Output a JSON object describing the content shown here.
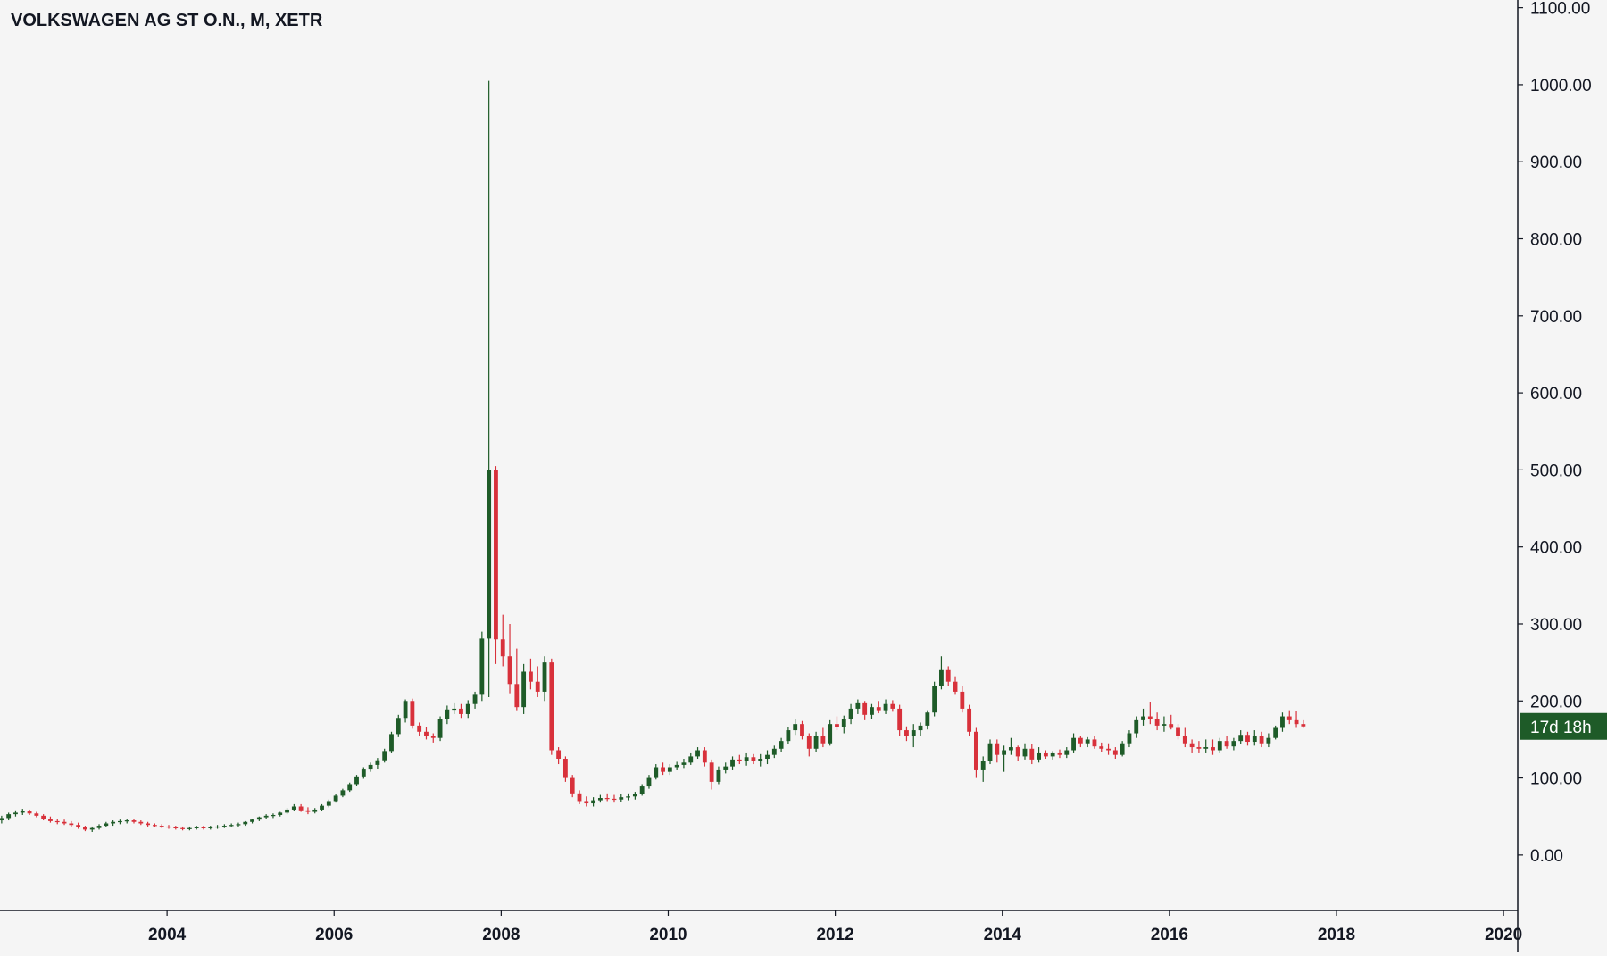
{
  "title": "VOLKSWAGEN AG ST O.N., M, XETR",
  "colors": {
    "background": "#f5f5f5",
    "up": "#1e5b28",
    "down": "#d8313b",
    "axis_line": "#131722",
    "text": "#131722",
    "badge_bg": "#1e5b28",
    "badge_text": "#ffffff"
  },
  "price_badge": "17d 18h",
  "chart_data": {
    "type": "candlestick",
    "title": "VOLKSWAGEN AG ST O.N., M, XETR",
    "interval": "monthly",
    "y_axis_position": "right",
    "ylim": [
      -72,
      1110
    ],
    "xlim": [
      2002.0,
      2020.17
    ],
    "grid": false,
    "y_ticks": [
      {
        "value": 1100,
        "label": "1100.00"
      },
      {
        "value": 1000,
        "label": "1000.00"
      },
      {
        "value": 900,
        "label": "900.00"
      },
      {
        "value": 800,
        "label": "800.00"
      },
      {
        "value": 700,
        "label": "700.00"
      },
      {
        "value": 600,
        "label": "600.00"
      },
      {
        "value": 500,
        "label": "500.00"
      },
      {
        "value": 400,
        "label": "400.00"
      },
      {
        "value": 300,
        "label": "300.00"
      },
      {
        "value": 200,
        "label": "200.00"
      },
      {
        "value": 100,
        "label": "100.00"
      },
      {
        "value": 0,
        "label": "0.00"
      }
    ],
    "x_ticks": [
      {
        "value": 2004,
        "label": "2004"
      },
      {
        "value": 2006,
        "label": "2006"
      },
      {
        "value": 2008,
        "label": "2008"
      },
      {
        "value": 2010,
        "label": "2010"
      },
      {
        "value": 2012,
        "label": "2012"
      },
      {
        "value": 2014,
        "label": "2014"
      },
      {
        "value": 2016,
        "label": "2016"
      },
      {
        "value": 2018,
        "label": "2018"
      },
      {
        "value": 2020,
        "label": "2020"
      }
    ],
    "candles_ohlc": [
      [
        45,
        51,
        41,
        48
      ],
      [
        48,
        55,
        45,
        53
      ],
      [
        53,
        58,
        50,
        55
      ],
      [
        55,
        60,
        52,
        57
      ],
      [
        57,
        59,
        52,
        54
      ],
      [
        54,
        56,
        49,
        51
      ],
      [
        51,
        53,
        45,
        47
      ],
      [
        47,
        50,
        42,
        44
      ],
      [
        44,
        47,
        40,
        43
      ],
      [
        43,
        46,
        39,
        41
      ],
      [
        41,
        44,
        37,
        39
      ],
      [
        39,
        42,
        34,
        36
      ],
      [
        36,
        38,
        31,
        33
      ],
      [
        33,
        37,
        30,
        35
      ],
      [
        35,
        40,
        33,
        38
      ],
      [
        38,
        43,
        36,
        41
      ],
      [
        41,
        45,
        38,
        43
      ],
      [
        43,
        46,
        40,
        44
      ],
      [
        44,
        47,
        41,
        45
      ],
      [
        45,
        47,
        41,
        43
      ],
      [
        43,
        45,
        39,
        41
      ],
      [
        41,
        43,
        37,
        39
      ],
      [
        39,
        41,
        36,
        38
      ],
      [
        38,
        40,
        35,
        37
      ],
      [
        37,
        39,
        34,
        36
      ],
      [
        36,
        38,
        33,
        35
      ],
      [
        35,
        37,
        32,
        34
      ],
      [
        34,
        37,
        32,
        35
      ],
      [
        35,
        38,
        33,
        36
      ],
      [
        36,
        38,
        33,
        35
      ],
      [
        35,
        38,
        33,
        36
      ],
      [
        36,
        39,
        34,
        37
      ],
      [
        37,
        40,
        35,
        38
      ],
      [
        38,
        41,
        36,
        39
      ],
      [
        39,
        42,
        37,
        40
      ],
      [
        40,
        44,
        38,
        43
      ],
      [
        43,
        47,
        41,
        46
      ],
      [
        46,
        50,
        44,
        49
      ],
      [
        49,
        53,
        47,
        51
      ],
      [
        51,
        54,
        48,
        52
      ],
      [
        52,
        56,
        50,
        55
      ],
      [
        55,
        61,
        53,
        59
      ],
      [
        59,
        66,
        57,
        63
      ],
      [
        63,
        66,
        56,
        58
      ],
      [
        58,
        62,
        53,
        56
      ],
      [
        56,
        61,
        54,
        59
      ],
      [
        59,
        66,
        57,
        64
      ],
      [
        64,
        72,
        62,
        70
      ],
      [
        70,
        79,
        68,
        77
      ],
      [
        77,
        86,
        75,
        84
      ],
      [
        84,
        94,
        82,
        92
      ],
      [
        92,
        104,
        90,
        102
      ],
      [
        102,
        114,
        99,
        111
      ],
      [
        111,
        120,
        108,
        117
      ],
      [
        117,
        126,
        112,
        123
      ],
      [
        123,
        138,
        120,
        135
      ],
      [
        135,
        160,
        132,
        157
      ],
      [
        157,
        182,
        153,
        178
      ],
      [
        178,
        202,
        172,
        200
      ],
      [
        200,
        203,
        164,
        168
      ],
      [
        168,
        172,
        155,
        160
      ],
      [
        160,
        166,
        150,
        154
      ],
      [
        154,
        158,
        146,
        152
      ],
      [
        152,
        180,
        148,
        176
      ],
      [
        176,
        194,
        170,
        189
      ],
      [
        189,
        197,
        183,
        190
      ],
      [
        190,
        196,
        178,
        183
      ],
      [
        183,
        201,
        178,
        196
      ],
      [
        196,
        212,
        190,
        208
      ],
      [
        208,
        290,
        200,
        281
      ],
      [
        281,
        1005,
        205,
        500
      ],
      [
        500,
        505,
        248,
        280
      ],
      [
        280,
        312,
        245,
        258
      ],
      [
        258,
        300,
        210,
        222
      ],
      [
        222,
        268,
        188,
        192
      ],
      [
        192,
        248,
        183,
        238
      ],
      [
        238,
        255,
        215,
        225
      ],
      [
        225,
        245,
        205,
        212
      ],
      [
        212,
        258,
        200,
        250
      ],
      [
        250,
        255,
        130,
        136
      ],
      [
        136,
        140,
        118,
        125
      ],
      [
        125,
        128,
        95,
        100
      ],
      [
        100,
        104,
        75,
        80
      ],
      [
        80,
        84,
        66,
        70
      ],
      [
        70,
        76,
        63,
        67
      ],
      [
        67,
        75,
        63,
        71
      ],
      [
        71,
        78,
        68,
        74
      ],
      [
        74,
        80,
        70,
        73
      ],
      [
        73,
        78,
        68,
        72
      ],
      [
        72,
        79,
        69,
        75
      ],
      [
        75,
        80,
        71,
        76
      ],
      [
        76,
        82,
        72,
        79
      ],
      [
        79,
        92,
        77,
        89
      ],
      [
        89,
        104,
        86,
        100
      ],
      [
        100,
        118,
        98,
        114
      ],
      [
        114,
        120,
        104,
        108
      ],
      [
        108,
        118,
        104,
        114
      ],
      [
        114,
        121,
        110,
        117
      ],
      [
        117,
        125,
        113,
        120
      ],
      [
        120,
        132,
        117,
        128
      ],
      [
        128,
        140,
        125,
        136
      ],
      [
        136,
        140,
        115,
        120
      ],
      [
        120,
        124,
        85,
        95
      ],
      [
        95,
        115,
        92,
        110
      ],
      [
        110,
        120,
        106,
        115
      ],
      [
        115,
        128,
        110,
        124
      ],
      [
        124,
        130,
        118,
        122
      ],
      [
        122,
        132,
        116,
        127
      ],
      [
        127,
        131,
        118,
        122
      ],
      [
        122,
        131,
        115,
        125
      ],
      [
        125,
        136,
        118,
        130
      ],
      [
        130,
        142,
        126,
        138
      ],
      [
        138,
        152,
        134,
        148
      ],
      [
        148,
        166,
        144,
        162
      ],
      [
        162,
        176,
        156,
        170
      ],
      [
        170,
        174,
        150,
        154
      ],
      [
        154,
        158,
        128,
        138
      ],
      [
        138,
        160,
        134,
        155
      ],
      [
        155,
        165,
        140,
        145
      ],
      [
        145,
        175,
        142,
        170
      ],
      [
        170,
        180,
        162,
        166
      ],
      [
        166,
        181,
        158,
        176
      ],
      [
        176,
        196,
        170,
        190
      ],
      [
        190,
        202,
        183,
        197
      ],
      [
        197,
        200,
        175,
        182
      ],
      [
        182,
        196,
        176,
        192
      ],
      [
        192,
        200,
        184,
        188
      ],
      [
        188,
        202,
        183,
        196
      ],
      [
        196,
        201,
        186,
        190
      ],
      [
        190,
        195,
        155,
        162
      ],
      [
        162,
        167,
        148,
        155
      ],
      [
        155,
        170,
        140,
        162
      ],
      [
        162,
        172,
        155,
        168
      ],
      [
        168,
        188,
        163,
        185
      ],
      [
        185,
        225,
        180,
        220
      ],
      [
        220,
        258,
        215,
        240
      ],
      [
        240,
        245,
        220,
        225
      ],
      [
        225,
        232,
        208,
        212
      ],
      [
        212,
        220,
        185,
        190
      ],
      [
        190,
        195,
        155,
        160
      ],
      [
        160,
        165,
        100,
        110
      ],
      [
        110,
        128,
        95,
        122
      ],
      [
        122,
        150,
        118,
        145
      ],
      [
        145,
        150,
        120,
        130
      ],
      [
        130,
        142,
        108,
        136
      ],
      [
        136,
        152,
        130,
        140
      ],
      [
        140,
        142,
        122,
        128
      ],
      [
        128,
        145,
        124,
        138
      ],
      [
        138,
        144,
        118,
        124
      ],
      [
        124,
        140,
        120,
        132
      ],
      [
        132,
        136,
        125,
        128
      ],
      [
        128,
        135,
        124,
        132
      ],
      [
        132,
        137,
        126,
        130
      ],
      [
        130,
        140,
        126,
        136
      ],
      [
        136,
        158,
        132,
        152
      ],
      [
        152,
        155,
        140,
        145
      ],
      [
        145,
        153,
        140,
        150
      ],
      [
        150,
        155,
        138,
        141
      ],
      [
        141,
        146,
        134,
        138
      ],
      [
        138,
        145,
        130,
        136
      ],
      [
        136,
        140,
        125,
        130
      ],
      [
        130,
        148,
        128,
        145
      ],
      [
        145,
        162,
        140,
        158
      ],
      [
        158,
        180,
        152,
        175
      ],
      [
        175,
        190,
        168,
        180
      ],
      [
        180,
        198,
        170,
        176
      ],
      [
        176,
        185,
        162,
        168
      ],
      [
        168,
        180,
        160,
        170
      ],
      [
        170,
        182,
        163,
        165
      ],
      [
        165,
        170,
        150,
        155
      ],
      [
        155,
        165,
        140,
        145
      ],
      [
        145,
        150,
        132,
        140
      ],
      [
        140,
        148,
        132,
        138
      ],
      [
        138,
        150,
        132,
        140
      ],
      [
        140,
        150,
        130,
        136
      ],
      [
        136,
        152,
        132,
        148
      ],
      [
        148,
        155,
        138,
        141
      ],
      [
        141,
        152,
        136,
        148
      ],
      [
        148,
        162,
        144,
        156
      ],
      [
        156,
        160,
        142,
        147
      ],
      [
        147,
        162,
        142,
        155
      ],
      [
        155,
        160,
        140,
        145
      ],
      [
        145,
        158,
        140,
        152
      ],
      [
        152,
        168,
        150,
        165
      ],
      [
        165,
        185,
        160,
        180
      ],
      [
        180,
        188,
        170,
        175
      ],
      [
        175,
        187,
        165,
        170
      ],
      [
        170,
        175,
        165,
        167
      ]
    ]
  }
}
